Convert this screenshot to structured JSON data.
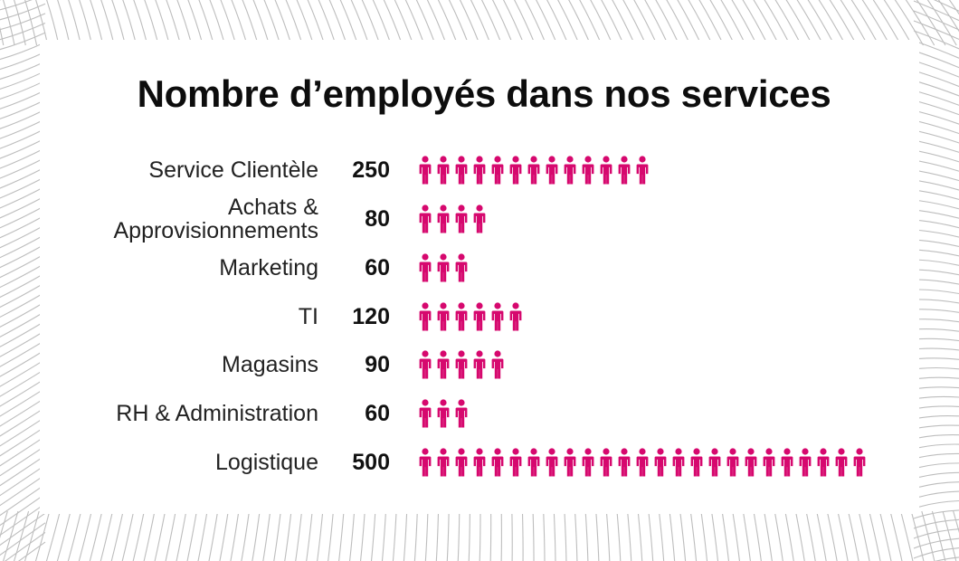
{
  "chart_data": {
    "type": "pictograph",
    "title": "Nombre d’employés dans nos services",
    "categories": [
      "Service Clientèle",
      "Achats & Approvisionnements",
      "Marketing",
      "TI",
      "Magasins",
      "RH & Administration",
      "Logistique"
    ],
    "category_lines": [
      [
        "Service Clientèle"
      ],
      [
        "Achats &",
        "Approvisionnements"
      ],
      [
        "Marketing"
      ],
      [
        "TI"
      ],
      [
        "Magasins"
      ],
      [
        "RH & Administration"
      ],
      [
        "Logistique"
      ]
    ],
    "values": [
      250,
      80,
      60,
      120,
      90,
      60,
      500
    ],
    "value_labels": [
      "250",
      "80",
      "60",
      "120",
      "90",
      "60",
      "500"
    ],
    "icon_unit": 20,
    "icon": "person-icon",
    "icon_color": "#d6086e"
  },
  "colors": {
    "accent": "#d6086e",
    "text": "#111111",
    "background_lines": "#bdbdbd"
  }
}
